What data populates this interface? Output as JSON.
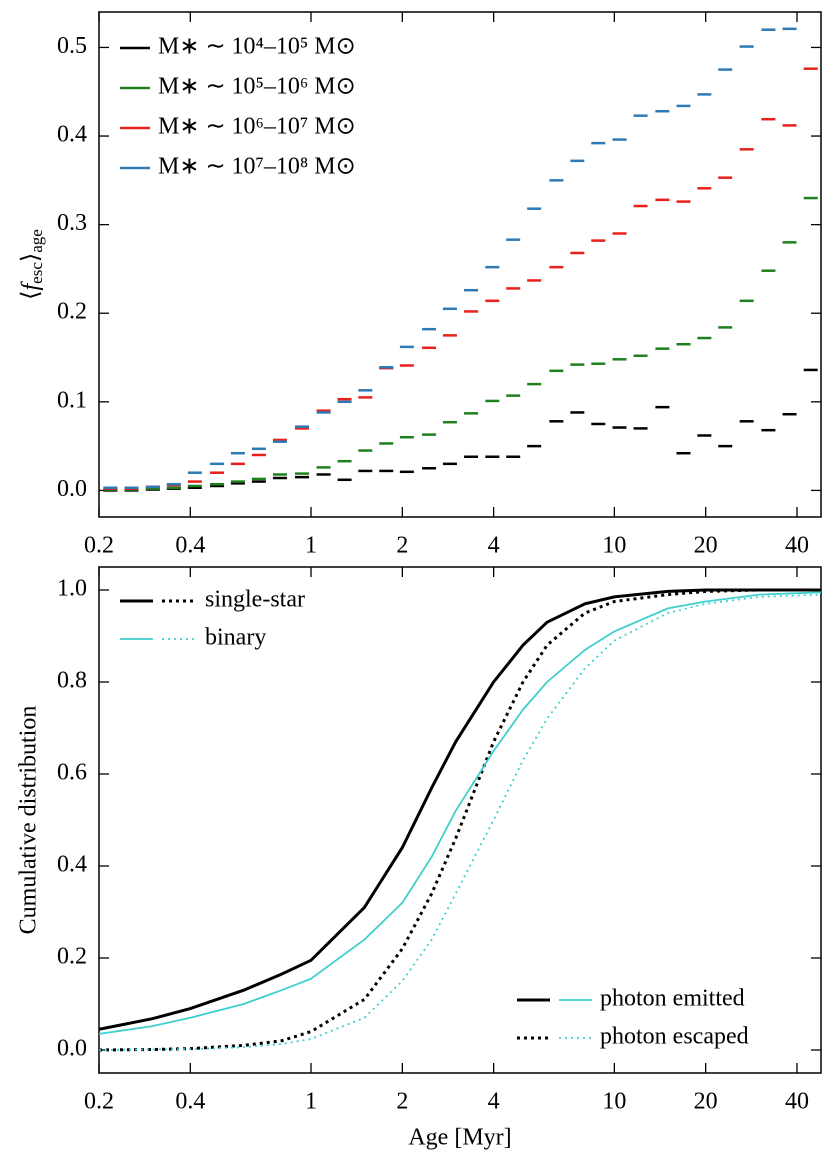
{
  "chart_data": [
    {
      "type": "step",
      "ylabel": [
        "⟨",
        "f",
        "esc",
        "⟩",
        "age"
      ],
      "xscale": "log",
      "xlim": [
        0.2,
        48
      ],
      "ylim": [
        -0.03,
        0.54
      ],
      "xticks": [
        0.2,
        0.4,
        1,
        2,
        4,
        10,
        20,
        40
      ],
      "yticks": [
        {
          "value": 0,
          "label": "0.0"
        },
        0.1,
        0.2,
        0.3,
        0.4,
        0.5
      ],
      "legend": "upper left",
      "x": [
        0.218,
        0.256,
        0.301,
        0.353,
        0.414,
        0.49,
        0.574,
        0.673,
        0.79,
        0.934,
        1.1,
        1.29,
        1.51,
        1.77,
        2.07,
        2.45,
        2.87,
        3.37,
        3.96,
        4.64,
        5.44,
        6.44,
        7.55,
        8.85,
        10.4,
        12.2,
        14.4,
        16.9,
        19.8,
        23.2,
        27.3,
        32.2,
        37.8,
        44.4
      ],
      "series": [
        {
          "name": "M∗ ∼ 10⁴–10⁵ M⊙",
          "color": "#000000",
          "values": [
            0.0,
            0.0,
            0.001,
            0.002,
            0.003,
            0.005,
            0.008,
            0.01,
            0.014,
            0.015,
            0.018,
            0.012,
            0.022,
            0.022,
            0.021,
            0.025,
            0.03,
            0.038,
            0.038,
            0.038,
            0.05,
            0.078,
            0.088,
            0.075,
            0.071,
            0.07,
            0.094,
            0.042,
            0.062,
            0.05,
            0.078,
            0.068,
            0.086,
            0.136
          ]
        },
        {
          "name": "M∗ ∼ 10⁵–10⁶ M⊙",
          "color": "#1f801f",
          "values": [
            0.001,
            0.001,
            0.002,
            0.003,
            0.005,
            0.007,
            0.01,
            0.013,
            0.018,
            0.019,
            0.026,
            0.033,
            0.045,
            0.053,
            0.06,
            0.063,
            0.077,
            0.087,
            0.101,
            0.107,
            0.12,
            0.135,
            0.142,
            0.143,
            0.148,
            0.152,
            0.16,
            0.165,
            0.172,
            0.184,
            0.214,
            0.248,
            0.28,
            0.33
          ]
        },
        {
          "name": "M∗ ∼ 10⁶–10⁷ M⊙",
          "color": "#e8201c",
          "values": [
            0.002,
            0.002,
            0.004,
            0.006,
            0.01,
            0.02,
            0.03,
            0.04,
            0.057,
            0.07,
            0.09,
            0.103,
            0.105,
            0.138,
            0.141,
            0.161,
            0.175,
            0.202,
            0.214,
            0.228,
            0.237,
            0.252,
            0.268,
            0.282,
            0.29,
            0.321,
            0.328,
            0.326,
            0.341,
            0.353,
            0.385,
            0.419,
            0.412,
            0.476
          ]
        },
        {
          "name": "M∗ ∼ 10⁷–10⁸ M⊙",
          "color": "#2e7ab5",
          "values": [
            0.003,
            0.003,
            0.004,
            0.007,
            0.02,
            0.03,
            0.042,
            0.047,
            0.055,
            0.072,
            0.088,
            0.1,
            0.113,
            0.139,
            0.162,
            0.182,
            0.205,
            0.226,
            0.252,
            0.283,
            0.318,
            0.35,
            0.372,
            0.392,
            0.396,
            0.423,
            0.428,
            0.434,
            0.447,
            0.475,
            0.501,
            0.52,
            0.521,
            null
          ]
        }
      ]
    },
    {
      "type": "line",
      "xlabel": "Age [Myr]",
      "ylabel": "Cumulative distribution",
      "xscale": "log",
      "xlim": [
        0.2,
        48
      ],
      "ylim": [
        -0.05,
        1.05
      ],
      "xticks": [
        0.2,
        0.4,
        1,
        2,
        4,
        10,
        20,
        40
      ],
      "yticks": [
        {
          "value": 0,
          "label": "0.0"
        },
        0.2,
        0.4,
        0.6,
        0.8,
        {
          "value": 1,
          "label": "1.0"
        }
      ],
      "legend_population": [
        "single-star",
        "binary"
      ],
      "legend_photon": [
        "photon emitted",
        "photon escaped"
      ],
      "x": [
        0.2,
        0.3,
        0.4,
        0.6,
        0.8,
        1,
        1.5,
        2,
        2.5,
        3,
        4,
        5,
        6,
        8,
        10,
        15,
        20,
        30,
        48
      ],
      "series": [
        {
          "color": "#000000",
          "linestyle": "solid",
          "values": [
            0.045,
            0.068,
            0.09,
            0.13,
            0.165,
            0.195,
            0.31,
            0.44,
            0.57,
            0.67,
            0.8,
            0.88,
            0.93,
            0.97,
            0.985,
            0.997,
            1.0,
            1.0,
            1.0
          ]
        },
        {
          "color": "#000000",
          "linestyle": "dotted",
          "values": [
            0.0,
            0.001,
            0.003,
            0.01,
            0.02,
            0.04,
            0.11,
            0.22,
            0.34,
            0.46,
            0.67,
            0.8,
            0.88,
            0.95,
            0.975,
            0.99,
            0.997,
            1.0,
            1.0
          ]
        },
        {
          "color": "#3fcfcf",
          "linestyle": "solid",
          "values": [
            0.035,
            0.052,
            0.07,
            0.1,
            0.13,
            0.155,
            0.24,
            0.32,
            0.42,
            0.52,
            0.65,
            0.74,
            0.8,
            0.87,
            0.91,
            0.96,
            0.975,
            0.99,
            0.995
          ]
        },
        {
          "color": "#3fcfcf",
          "linestyle": "dotted",
          "values": [
            0.0,
            0.001,
            0.002,
            0.006,
            0.013,
            0.024,
            0.07,
            0.15,
            0.24,
            0.34,
            0.5,
            0.63,
            0.72,
            0.83,
            0.89,
            0.95,
            0.97,
            0.985,
            0.99
          ]
        }
      ]
    }
  ]
}
